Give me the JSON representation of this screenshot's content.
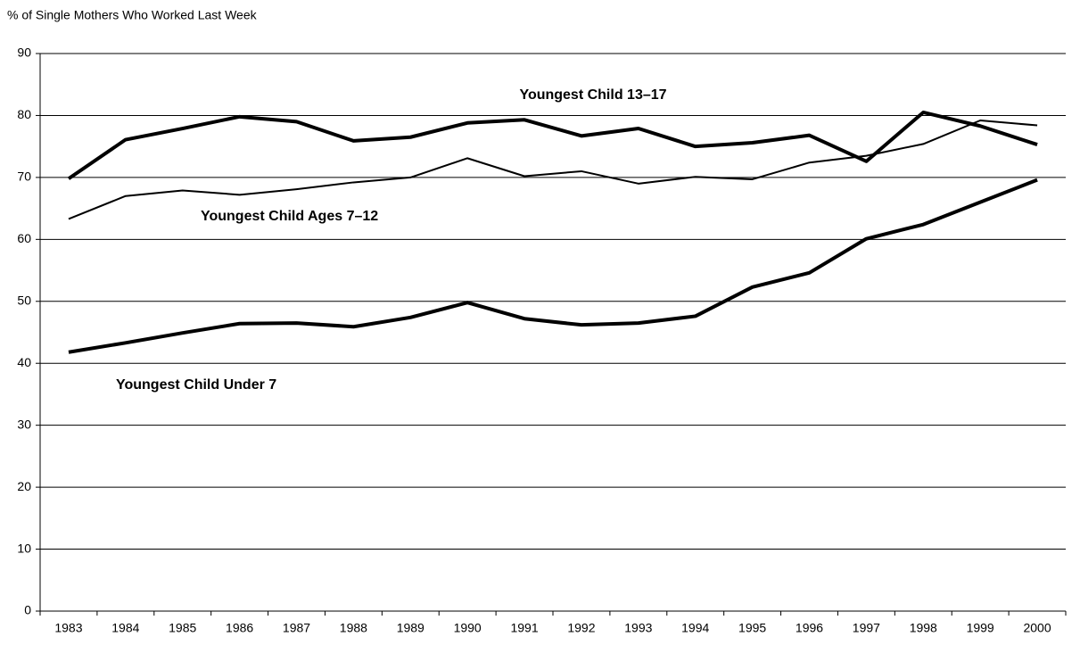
{
  "chart_data": {
    "type": "line",
    "y_axis_label": "% of Single Mothers Who Worked Last Week",
    "categories": [
      "1983",
      "1984",
      "1985",
      "1986",
      "1987",
      "1988",
      "1989",
      "1990",
      "1991",
      "1992",
      "1993",
      "1994",
      "1995",
      "1996",
      "1997",
      "1998",
      "1999",
      "2000"
    ],
    "series": [
      {
        "name": "Youngest Child 13–17",
        "color": "#000000",
        "values": [
          69.8,
          76.1,
          77.9,
          79.8,
          79.0,
          75.9,
          76.5,
          78.8,
          79.3,
          76.7,
          77.9,
          75.0,
          75.6,
          76.8,
          72.6,
          80.5,
          78.3,
          75.3
        ]
      },
      {
        "name": "Youngest Child Ages 7–12",
        "color": "#000000",
        "values": [
          63.3,
          67.0,
          67.9,
          67.2,
          68.1,
          69.2,
          70.0,
          73.1,
          70.2,
          71.0,
          69.0,
          70.1,
          69.7,
          72.4,
          73.5,
          75.4,
          79.2,
          78.4
        ]
      },
      {
        "name": "Youngest Child Under 7",
        "color": "#000000",
        "values": [
          41.8,
          43.3,
          44.9,
          46.4,
          46.5,
          45.9,
          47.4,
          49.8,
          47.2,
          46.2,
          46.5,
          47.6,
          52.3,
          54.6,
          60.1,
          62.4,
          66.0,
          69.6
        ]
      }
    ],
    "ylim": [
      0,
      90
    ],
    "yticks": [
      0,
      10,
      20,
      30,
      40,
      50,
      60,
      70,
      80,
      90
    ],
    "grid": true
  }
}
